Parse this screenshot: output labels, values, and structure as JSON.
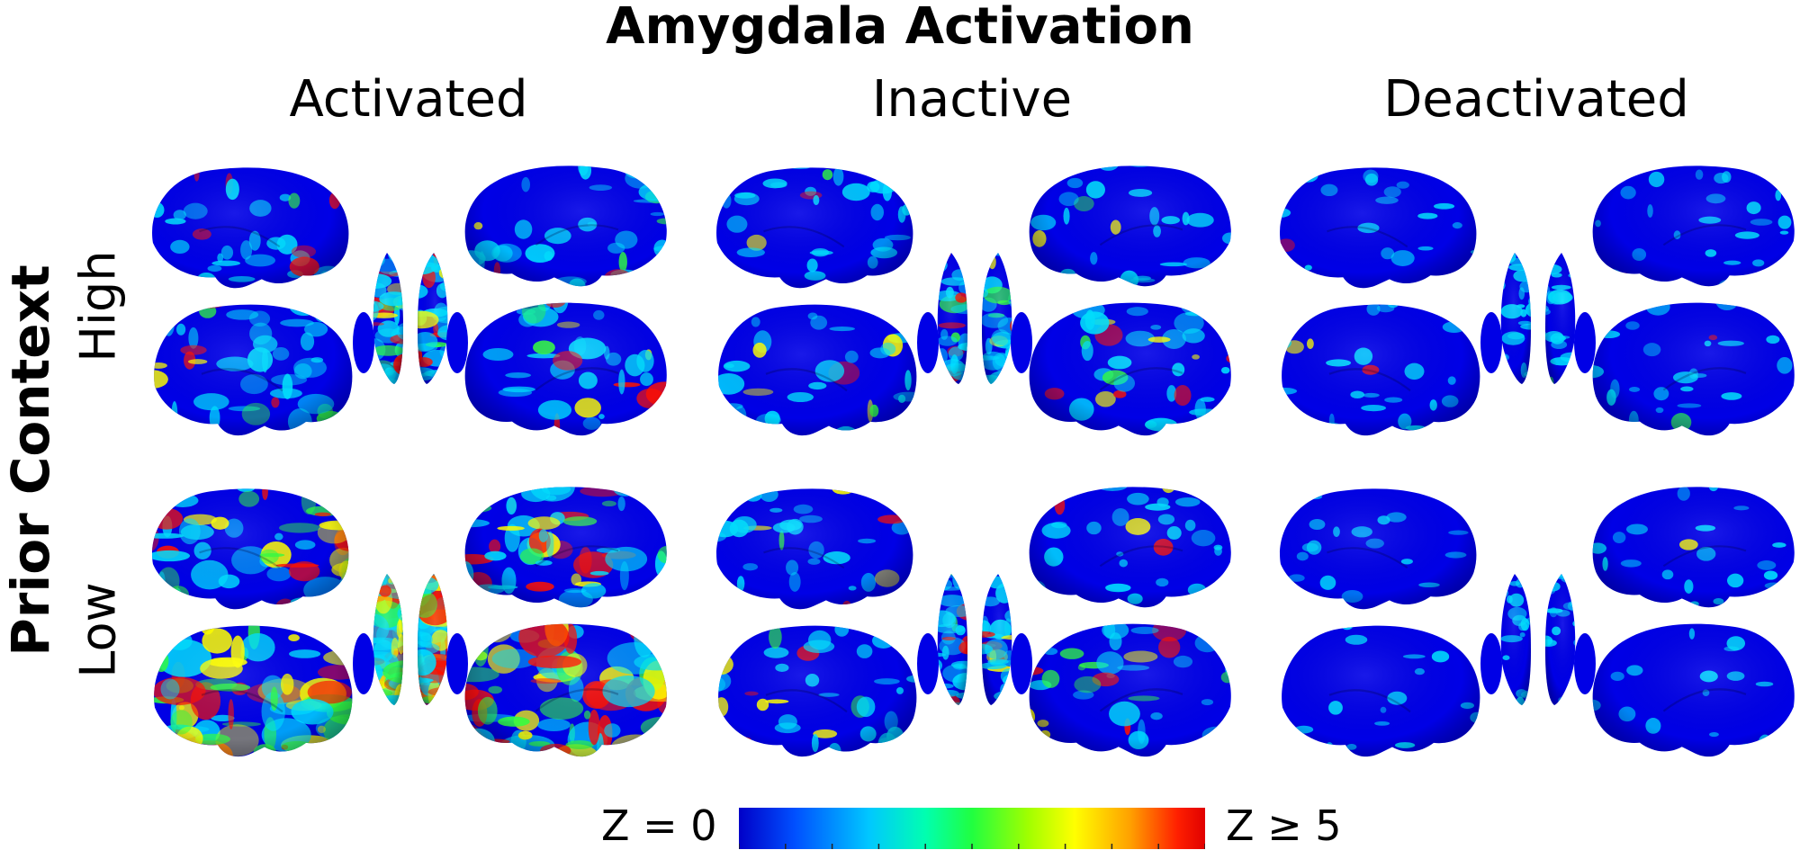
{
  "title": "Amygdala Activation",
  "columns": [
    {
      "label": "Activated"
    },
    {
      "label": "Inactive"
    },
    {
      "label": "Deactivated"
    }
  ],
  "row_axis_label": "Prior Context",
  "rows": [
    {
      "label": "High"
    },
    {
      "label": "Low"
    }
  ],
  "colorbar": {
    "min_label": "Z = 0",
    "max_label": "Z ≥ 5",
    "min": 0,
    "max": 5
  },
  "panels": [
    {
      "column": "Activated",
      "row": "High",
      "activation_level": 0.38
    },
    {
      "column": "Inactive",
      "row": "High",
      "activation_level": 0.28
    },
    {
      "column": "Deactivated",
      "row": "High",
      "activation_level": 0.14
    },
    {
      "column": "Activated",
      "row": "Low",
      "activation_level": 0.75
    },
    {
      "column": "Inactive",
      "row": "Low",
      "activation_level": 0.3
    },
    {
      "column": "Deactivated",
      "row": "Low",
      "activation_level": 0.06
    }
  ],
  "colors": {
    "cold": "#0000e6",
    "cyan": "#00e0ff",
    "green": "#30ff40",
    "yellow": "#ffff00",
    "red": "#ff1000"
  }
}
